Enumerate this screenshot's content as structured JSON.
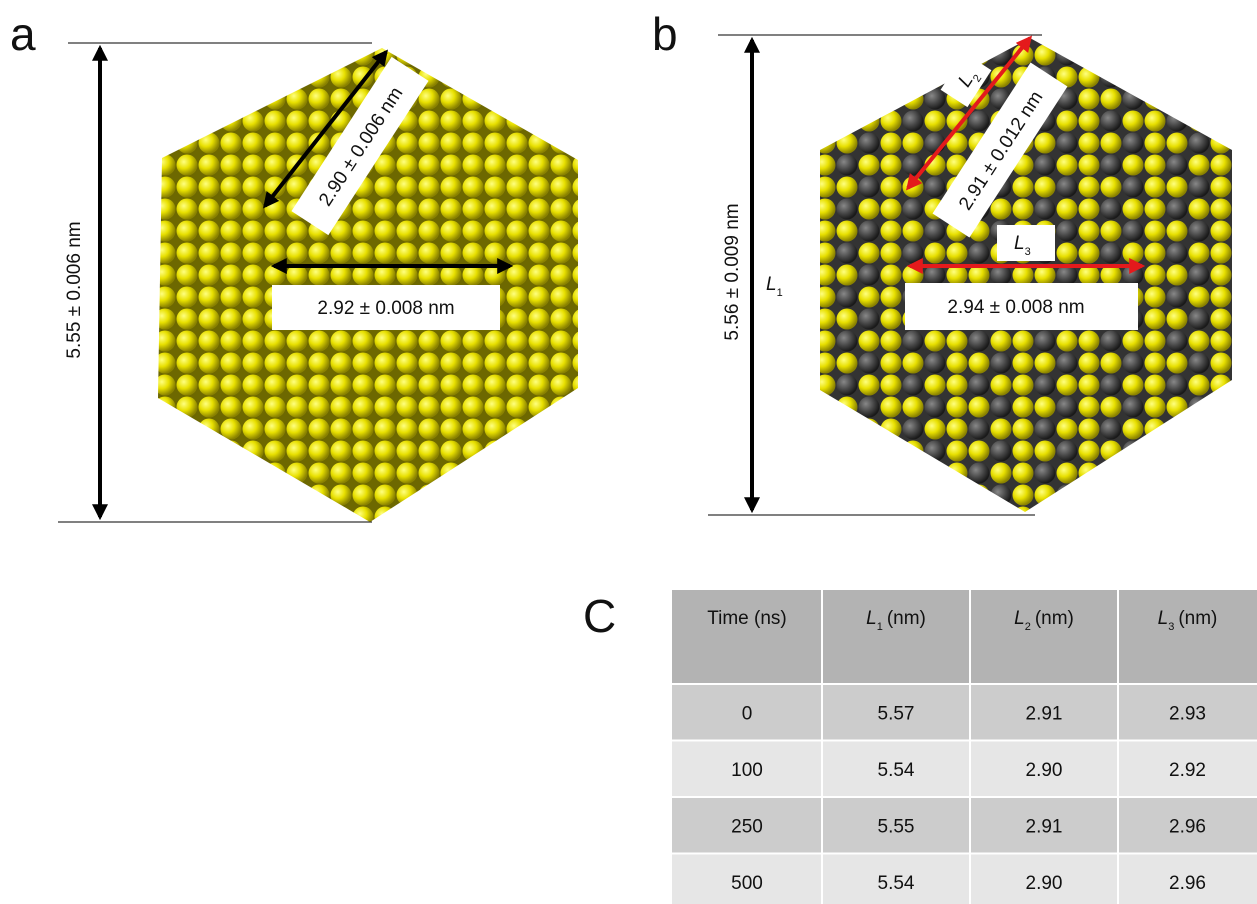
{
  "panels": [
    {
      "label": "a",
      "height_label": "5.55 ± 0.006 nm",
      "edge_label": "2.90 ± 0.006 nm",
      "width_label": "2.92 ± 0.008 nm"
    },
    {
      "label": "b",
      "height_label": "5.56 ± 0.009 nm",
      "edge_label": "2.91 ± 0.012 nm",
      "width_label": "2.94 ± 0.008 nm",
      "symbols": [
        {
          "symbol": "L",
          "sub": "1"
        },
        {
          "symbol": "L",
          "sub": "2"
        },
        {
          "symbol": "L",
          "sub": "3"
        }
      ]
    }
  ],
  "table": {
    "label": "C",
    "header": [
      {
        "text": "Time (ns)"
      },
      {
        "symbol": "L",
        "sub": "1",
        "unit": "(nm)"
      },
      {
        "symbol": "L",
        "sub": "2",
        "unit": "(nm)"
      },
      {
        "symbol": "L",
        "sub": "3",
        "unit": "(nm)"
      }
    ],
    "rows": [
      [
        "0",
        "5.57",
        "2.91",
        "2.93"
      ],
      [
        "100",
        "5.54",
        "2.90",
        "2.92"
      ],
      [
        "250",
        "5.55",
        "2.91",
        "2.96"
      ],
      [
        "500",
        "5.54",
        "2.90",
        "2.96"
      ]
    ]
  }
}
